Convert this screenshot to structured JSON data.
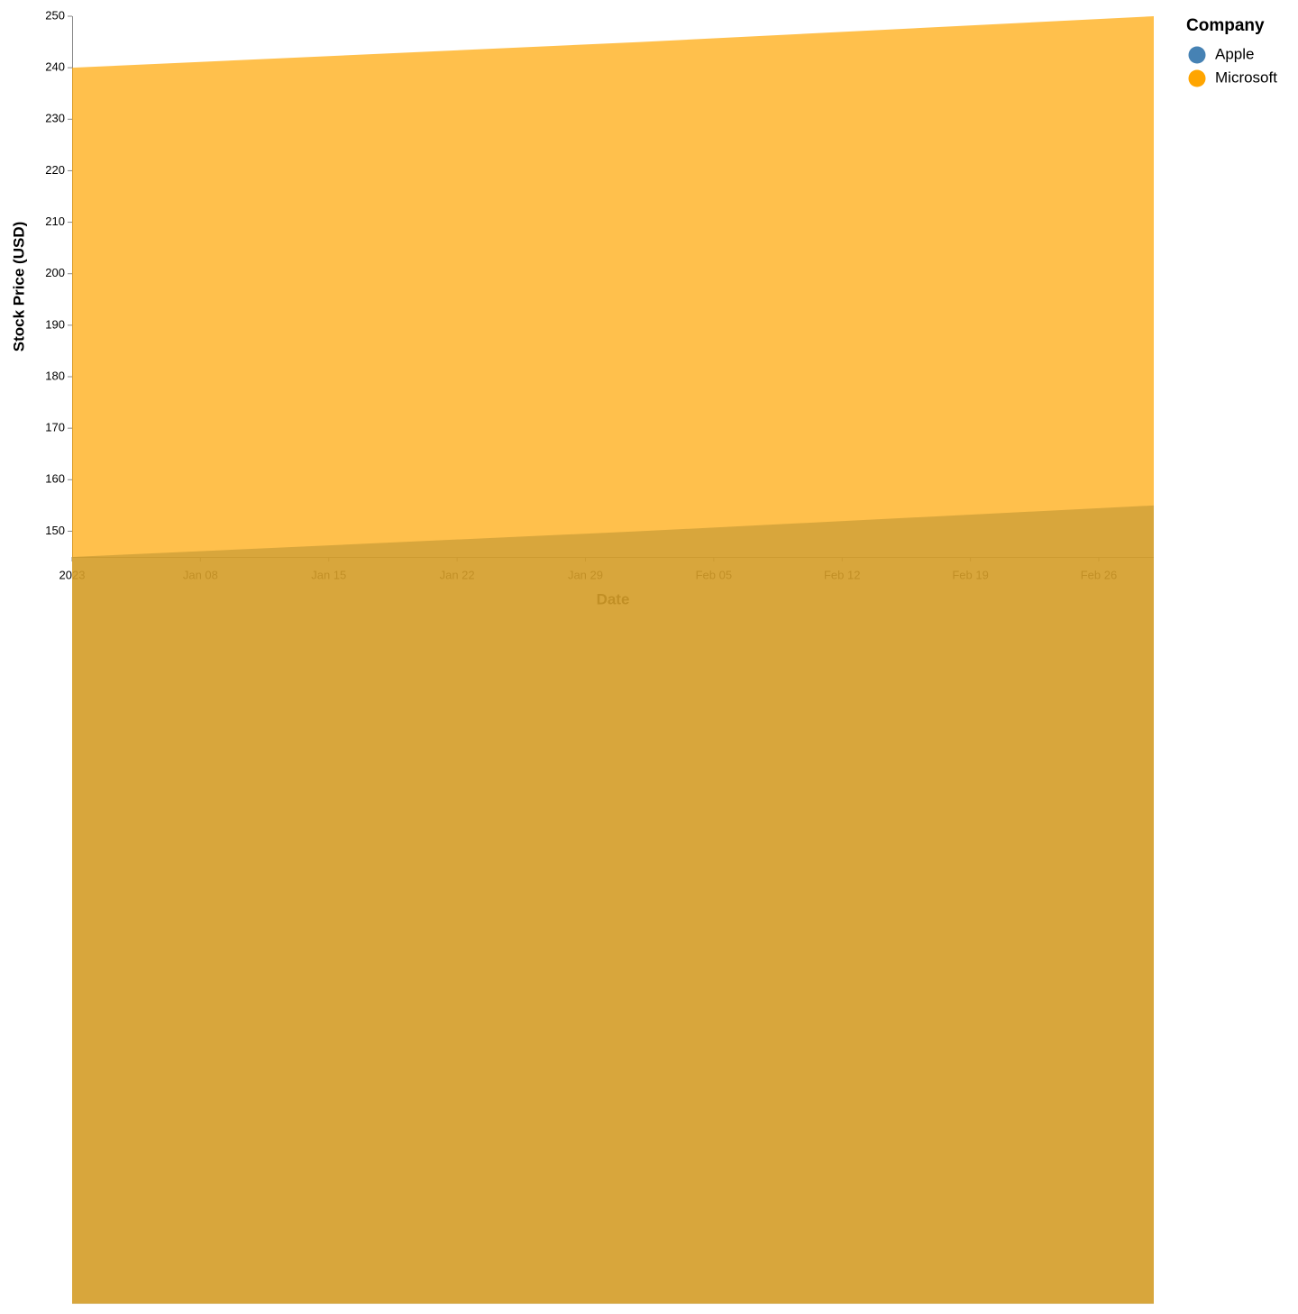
{
  "chart_data": {
    "type": "area",
    "x_label": "Date",
    "y_label": "Stock Price (USD)",
    "legend_title": "Company",
    "x": [
      "2023-01-01",
      "2023-02-01",
      "2023-03-01"
    ],
    "series": [
      {
        "name": "Apple",
        "color": "steelblue",
        "values": [
          145,
          150,
          155
        ]
      },
      {
        "name": "Microsoft",
        "color": "orange",
        "values": [
          240,
          245,
          250
        ]
      }
    ],
    "opacity": 0.7,
    "xlim": [
      "2023-01-01",
      "2023-03-01"
    ],
    "xticks": [
      {
        "value": "2023-01-01",
        "label": "2023"
      },
      {
        "value": "2023-01-08",
        "label": "Jan 08"
      },
      {
        "value": "2023-01-15",
        "label": "Jan 15"
      },
      {
        "value": "2023-01-22",
        "label": "Jan 22"
      },
      {
        "value": "2023-01-29",
        "label": "Jan 29"
      },
      {
        "value": "2023-02-05",
        "label": "Feb 05"
      },
      {
        "value": "2023-02-12",
        "label": "Feb 12"
      },
      {
        "value": "2023-02-19",
        "label": "Feb 19"
      },
      {
        "value": "2023-02-26",
        "label": "Feb 26"
      }
    ],
    "ylim": [
      145,
      250
    ],
    "yticks": [
      150,
      160,
      170,
      180,
      190,
      200,
      210,
      220,
      230,
      240,
      250
    ],
    "legend": "top-right"
  }
}
